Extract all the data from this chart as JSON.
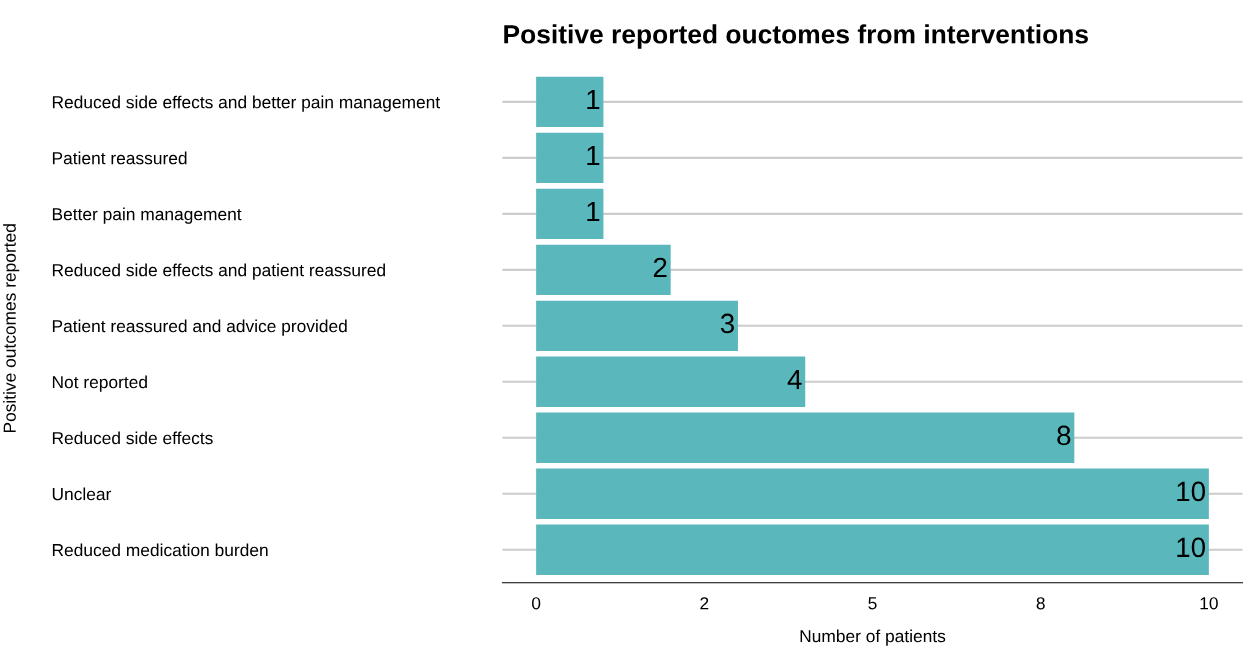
{
  "chart_data": {
    "type": "bar",
    "orientation": "horizontal",
    "title": "Positive reported ouctomes from interventions",
    "xlabel": "Number of patients",
    "ylabel": "Positive outcomes reported",
    "categories": [
      "Reduced side effects and better pain management",
      "Patient reassured",
      "Better pain management",
      "Reduced side effects and patient reassured",
      "Patient reassured and advice provided",
      "Not reported",
      "Reduced side effects",
      "Unclear",
      "Reduced medication burden"
    ],
    "values": [
      1,
      1,
      1,
      2,
      3,
      4,
      8,
      10,
      10
    ],
    "color": "#5ab8bd",
    "data_labels": true,
    "xlim": [
      -0.5,
      10.5
    ],
    "xticks": [
      0,
      {
        "value": 2.5,
        "label": "2"
      },
      5,
      {
        "value": 7.5,
        "label": "8"
      },
      10
    ],
    "grid": "y",
    "legend": false
  }
}
